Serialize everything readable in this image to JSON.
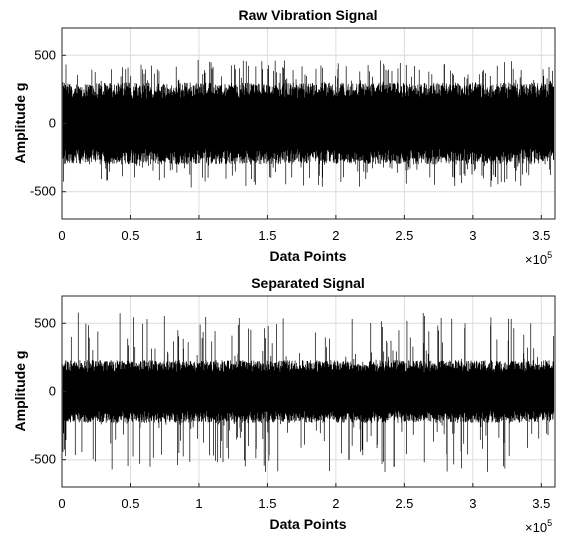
{
  "chart_data": [
    {
      "type": "line",
      "title": "Raw Vibration Signal",
      "xlabel": "Data Points",
      "ylabel": "Amplitude g",
      "xlim": [
        0,
        360000
      ],
      "ylim": [
        -700,
        700
      ],
      "x_ticks": [
        0,
        50000,
        100000,
        150000,
        200000,
        250000,
        300000,
        350000
      ],
      "x_tick_labels": [
        "0",
        "0.5",
        "1",
        "1.5",
        "2",
        "2.5",
        "3",
        "3.5"
      ],
      "x_multiplier_base": "×10",
      "x_multiplier_exp": "5",
      "y_ticks": [
        -500,
        0,
        500
      ],
      "y_tick_labels": [
        "-500",
        "0",
        "500"
      ],
      "grid": true,
      "series": [
        {
          "color": "#000000",
          "n_points": 360000,
          "mean": 0,
          "envelope_max": 470,
          "envelope_min": -470,
          "dense_band": [
            -300,
            300
          ]
        }
      ]
    },
    {
      "type": "line",
      "title": "Separated Signal",
      "xlabel": "Data Points",
      "ylabel": "Amplitude g",
      "xlim": [
        0,
        360000
      ],
      "ylim": [
        -700,
        700
      ],
      "x_ticks": [
        0,
        50000,
        100000,
        150000,
        200000,
        250000,
        300000,
        350000
      ],
      "x_tick_labels": [
        "0",
        "0.5",
        "1",
        "1.5",
        "2",
        "2.5",
        "3",
        "3.5"
      ],
      "x_multiplier_base": "×10",
      "x_multiplier_exp": "5",
      "y_ticks": [
        -500,
        0,
        500
      ],
      "y_tick_labels": [
        "-500",
        "0",
        "500"
      ],
      "grid": true,
      "series": [
        {
          "color": "#000000",
          "n_points": 360000,
          "mean": 0,
          "envelope_max": 580,
          "envelope_min": -590,
          "dense_band": [
            -230,
            230
          ]
        }
      ]
    }
  ]
}
